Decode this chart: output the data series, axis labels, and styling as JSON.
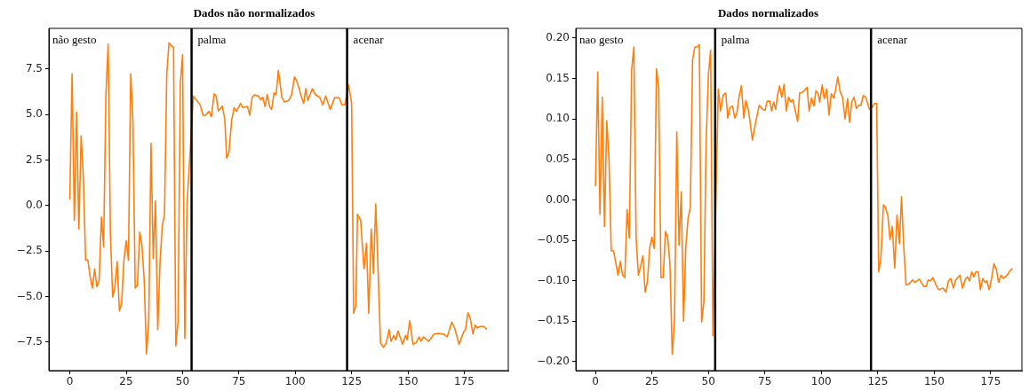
{
  "chart_data": [
    {
      "type": "line",
      "title": "Dados não normalizados",
      "xlim": [
        -9.3,
        194.5
      ],
      "ylim": [
        -9.06,
        9.74
      ],
      "xticks": [
        0,
        25,
        50,
        75,
        100,
        125,
        150,
        175
      ],
      "yticks": [
        {
          "value": -7.5,
          "label": "−7.5"
        },
        {
          "value": -5,
          "label": "−5.0"
        },
        {
          "value": -2.5,
          "label": "−2.5"
        },
        {
          "value": 0,
          "label": "0.0"
        },
        {
          "value": 2.5,
          "label": "2.5"
        },
        {
          "value": 5,
          "label": "5.0"
        },
        {
          "value": 7.5,
          "label": "7.5"
        }
      ],
      "grid": false,
      "legend": false,
      "ref_lines": [
        {
          "axis": "x",
          "value": 54,
          "color": "#000000"
        },
        {
          "axis": "x",
          "value": 123,
          "color": "#000000"
        }
      ],
      "annotations": [
        "não gesto",
        "palma",
        "acenar"
      ],
      "series": [
        {
          "color": "#ff7f0e",
          "x": [
            0,
            1,
            2,
            3,
            4,
            5,
            6,
            7,
            8,
            9,
            10,
            11,
            12,
            13,
            14,
            15,
            16,
            17,
            18,
            19,
            20,
            21,
            22,
            23,
            24,
            25,
            26,
            27,
            28,
            29,
            30,
            31,
            32,
            33,
            34,
            35,
            36,
            37,
            38,
            39,
            40,
            41,
            42,
            43,
            44,
            45,
            46,
            47,
            48,
            49,
            50,
            51,
            52,
            54.8,
            57.8,
            59.1,
            60.2,
            61.7,
            62.8,
            64,
            64.9,
            65.9,
            67.6,
            68.7,
            69.6,
            70.6,
            71.8,
            72.9,
            73.9,
            75.7,
            76.8,
            78.8,
            79.8,
            80.9,
            81.9,
            83.7,
            84.7,
            85.6,
            86.6,
            87.6,
            88.6,
            89.5,
            90.6,
            91.5,
            92.5,
            94.1,
            95.2,
            97.1,
            98.4,
            99.7,
            101,
            102.4,
            103.7,
            104.7,
            105.6,
            107.6,
            108.9,
            110.9,
            112.2,
            113.5,
            115.5,
            117.5,
            119.4,
            120.7,
            122,
            123.7,
            125,
            125.9,
            126.9,
            127.6,
            129,
            130.5,
            131.6,
            132.6,
            133.7,
            134.7,
            135.7,
            136.9,
            137.8,
            139.1,
            140.4,
            141.6,
            142.5,
            143.7,
            144.6,
            145.6,
            147.6,
            148.9,
            149.6,
            150.8,
            152.2,
            153.6,
            154.9,
            155.8,
            156.9,
            159.2,
            161.5,
            163.5,
            165.8,
            167.4,
            169.4,
            170.7,
            172.7,
            174.6,
            175.5,
            176.6,
            177.6,
            178.8,
            179.8,
            180.8,
            181.8,
            183.7,
            185
          ],
          "values": [
            0.34,
            7.24,
            -0.8,
            5.13,
            -1.28,
            3.83,
            1.56,
            -2.99,
            -2.99,
            -3.88,
            -4.53,
            -3.47,
            -4.45,
            -4.12,
            -0.63,
            -2.26,
            6.1,
            8.87,
            -1.53,
            -5.02,
            -4.45,
            -3.07,
            -5.78,
            -5.34,
            -2.99,
            -1.93,
            -2.99,
            7.24,
            4.64,
            -4.53,
            -4.37,
            -1.45,
            -2.18,
            -4.12,
            -8.15,
            -6.4,
            3.43,
            -2.91,
            0.26,
            -6.8,
            -3.15,
            -1.12,
            -0.47,
            7.24,
            8.95,
            8.79,
            8.7,
            -7.7,
            -6.4,
            6.67,
            8.3,
            -7.29,
            0.1,
            6.02,
            5.54,
            4.97,
            4.97,
            5.18,
            4.89,
            6.14,
            6.02,
            5.2,
            5.47,
            4.8,
            2.61,
            2.94,
            4.72,
            5.38,
            5.18,
            5.62,
            5.38,
            5.45,
            4.97,
            5.96,
            6.08,
            6.02,
            5.81,
            5.96,
            5.45,
            6.1,
            5.45,
            5.29,
            6.19,
            6.1,
            7.43,
            5.94,
            5.7,
            5.78,
            6.11,
            7.08,
            6.75,
            6.11,
            5.62,
            6.43,
            5.78,
            6.43,
            6.11,
            5.94,
            5.54,
            6.02,
            5.29,
            5.94,
            5.94,
            5.54,
            5.54,
            6.62,
            5.62,
            -5.91,
            -5.49,
            -0.47,
            -0.8,
            -3.47,
            -2.09,
            -5.91,
            -1.28,
            -3.72,
            0.1,
            -4.12,
            -7.53,
            -7.78,
            -7.53,
            -6.8,
            -7.45,
            -7.13,
            -7.37,
            -6.88,
            -7.61,
            -7.13,
            -7.37,
            -6.32,
            -7.61,
            -7.53,
            -7.21,
            -7.45,
            -7.21,
            -7.45,
            -7.05,
            -7.02,
            -7.05,
            -7.21,
            -6.4,
            -6.72,
            -7.61,
            -6.96,
            -6.8,
            -5.88,
            -6.16,
            -7.05,
            -6.56,
            -6.72,
            -6.64,
            -6.64,
            -6.8
          ]
        }
      ]
    },
    {
      "type": "line",
      "title": "Dados normalizados",
      "xlim": [
        -8.7,
        188.8
      ],
      "ylim": [
        -0.211,
        0.212
      ],
      "xticks": [
        0,
        25,
        50,
        75,
        100,
        125,
        150,
        175
      ],
      "yticks": [
        {
          "value": -0.2,
          "label": "−0.20"
        },
        {
          "value": -0.15,
          "label": "−0.15"
        },
        {
          "value": -0.1,
          "label": "−0.10"
        },
        {
          "value": -0.05,
          "label": "−0.05"
        },
        {
          "value": 0,
          "label": "0.00"
        },
        {
          "value": 0.05,
          "label": "0.05"
        },
        {
          "value": 0.1,
          "label": "0.10"
        },
        {
          "value": 0.15,
          "label": "0.15"
        },
        {
          "value": 0.2,
          "label": "0.20"
        }
      ],
      "grid": false,
      "legend": false,
      "ref_lines": [
        {
          "axis": "x",
          "value": 53,
          "color": "#000000"
        },
        {
          "axis": "x",
          "value": 122,
          "color": "#000000"
        }
      ],
      "annotations": [
        "nao gesto",
        "palma",
        "acenar"
      ],
      "series": [
        {
          "color": "#ff7f0e",
          "x": [
            0,
            1,
            2,
            3,
            4,
            5,
            6,
            7,
            8,
            9,
            10,
            11,
            12,
            13,
            14,
            15,
            16,
            17,
            18,
            19,
            20,
            21,
            22,
            23,
            24,
            25,
            26,
            27,
            28,
            29,
            30,
            31,
            32,
            33,
            34,
            35,
            36,
            37,
            38,
            39,
            40,
            41,
            42,
            43,
            44,
            45,
            46,
            47,
            48,
            49,
            50,
            51,
            52,
            54.4,
            55.4,
            56.6,
            57.7,
            58.6,
            59.6,
            60.7,
            61.7,
            62.6,
            63.6,
            64.6,
            65.7,
            66.6,
            67.8,
            69.5,
            70.8,
            72.5,
            74,
            75.1,
            76,
            77.2,
            78,
            78.9,
            79.8,
            80.6,
            81.5,
            82.5,
            83.5,
            84.5,
            85.5,
            86.5,
            87.4,
            88.5,
            89.5,
            90.4,
            91.7,
            92.4,
            93.7,
            94.6,
            95.7,
            96.7,
            97.6,
            98.6,
            99.3,
            100.4,
            101.3,
            102.4,
            103.4,
            104.4,
            105.5,
            106.4,
            107.3,
            108.3,
            109.4,
            110.5,
            111.6,
            112.5,
            113.5,
            114.5,
            115.5,
            116.5,
            117.5,
            118.6,
            119.6,
            121.3,
            122.4,
            123.5,
            124.5,
            125.4,
            126.4,
            127.5,
            128.4,
            129.5,
            130.4,
            131.4,
            132.5,
            133.5,
            134.6,
            135.5,
            136.5,
            137.5,
            138.8,
            140.4,
            141.4,
            143.4,
            145.4,
            146.4,
            147.3,
            148.4,
            149.4,
            150.6,
            151.9,
            153.9,
            155.2,
            156.3,
            157.3,
            158.5,
            159.5,
            161.4,
            162.5,
            163.8,
            164.7,
            165.6,
            166.6,
            167.5,
            168.4,
            169.5,
            170.4,
            171.5,
            172.5,
            173.3,
            174.3,
            175.4,
            176.4,
            177.5,
            178.5,
            179.6,
            180.5,
            181.6,
            182.6,
            183.6,
            184.7
          ],
          "values": [
            0.017,
            0.158,
            -0.018,
            0.127,
            -0.033,
            0.098,
            0.05,
            -0.063,
            -0.063,
            -0.078,
            -0.093,
            -0.076,
            -0.093,
            -0.096,
            -0.012,
            -0.047,
            0.16,
            0.189,
            -0.047,
            -0.093,
            -0.082,
            -0.069,
            -0.114,
            -0.101,
            -0.06,
            -0.046,
            -0.06,
            0.162,
            0.138,
            -0.096,
            -0.096,
            -0.039,
            -0.047,
            -0.08,
            -0.191,
            -0.151,
            0.084,
            -0.056,
            0.01,
            -0.15,
            -0.058,
            -0.023,
            -0.009,
            0.173,
            0.189,
            0.189,
            0.192,
            -0.151,
            -0.126,
            0.072,
            0.154,
            0.185,
            -0.168,
            0.137,
            0.11,
            0.13,
            0.132,
            0.101,
            0.114,
            0.116,
            0.101,
            0.107,
            0.128,
            0.141,
            0.101,
            0.123,
            0.11,
            0.074,
            0.094,
            0.117,
            0.112,
            0.111,
            0.122,
            0.122,
            0.11,
            0.121,
            0.112,
            0.129,
            0.141,
            0.127,
            0.143,
            0.11,
            0.127,
            0.121,
            0.124,
            0.11,
            0.097,
            0.132,
            0.133,
            0.135,
            0.139,
            0.11,
            0.126,
            0.116,
            0.135,
            0.131,
            0.121,
            0.142,
            0.125,
            0.137,
            0.105,
            0.131,
            0.126,
            0.137,
            0.152,
            0.134,
            0.127,
            0.1,
            0.125,
            0.096,
            0.121,
            0.127,
            0.113,
            0.117,
            0.117,
            0.129,
            0.127,
            0.112,
            0.114,
            0.119,
            0.119,
            -0.089,
            -0.071,
            -0.006,
            -0.009,
            -0.02,
            -0.049,
            -0.033,
            -0.084,
            -0.019,
            -0.054,
            0.004,
            -0.058,
            -0.105,
            -0.104,
            -0.099,
            -0.102,
            -0.098,
            -0.107,
            -0.107,
            -0.099,
            -0.1,
            -0.096,
            -0.104,
            -0.111,
            -0.109,
            -0.114,
            -0.1,
            -0.097,
            -0.109,
            -0.099,
            -0.093,
            -0.109,
            -0.098,
            -0.095,
            -0.1,
            -0.089,
            -0.095,
            -0.089,
            -0.089,
            -0.111,
            -0.097,
            -0.102,
            -0.1,
            -0.111,
            -0.097,
            -0.079,
            -0.086,
            -0.102,
            -0.093,
            -0.097,
            -0.095,
            -0.092,
            -0.087,
            -0.085
          ]
        }
      ]
    }
  ]
}
